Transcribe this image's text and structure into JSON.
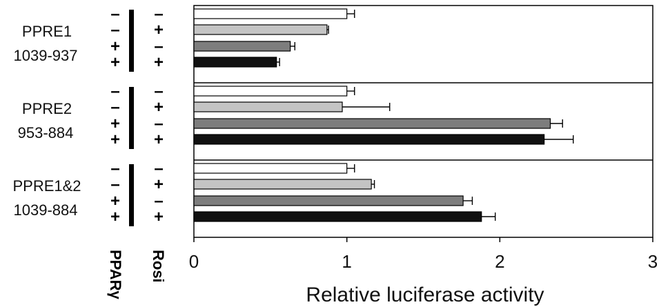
{
  "chart_data": {
    "type": "bar",
    "orientation": "horizontal",
    "xlabel": "Relative luciferase activity",
    "xlim": [
      0,
      3
    ],
    "xticks": [
      "0",
      "1",
      "2",
      "3"
    ],
    "grid": false,
    "legend": "none",
    "factor_labels": [
      "PPARγ",
      "Rosi"
    ],
    "conditions": [
      {
        "pparg": "–",
        "rosi": "–",
        "color": "#ffffff"
      },
      {
        "pparg": "–",
        "rosi": "+",
        "color": "#c4c4c4"
      },
      {
        "pparg": "+",
        "rosi": "–",
        "color": "#7d7d7d"
      },
      {
        "pparg": "+",
        "rosi": "+",
        "color": "#111111"
      }
    ],
    "groups": [
      {
        "name": "PPRE1",
        "range": "1039-937",
        "values": [
          1.0,
          0.87,
          0.63,
          0.54
        ],
        "errors": [
          0.05,
          0.01,
          0.03,
          0.02
        ]
      },
      {
        "name": "PPRE2",
        "range": "953-884",
        "values": [
          1.0,
          0.97,
          2.33,
          2.29
        ],
        "errors": [
          0.05,
          0.31,
          0.08,
          0.19
        ]
      },
      {
        "name": "PPRE1&2",
        "range": "1039-884",
        "values": [
          1.0,
          1.16,
          1.76,
          1.88
        ],
        "errors": [
          0.05,
          0.02,
          0.06,
          0.09
        ]
      }
    ]
  }
}
